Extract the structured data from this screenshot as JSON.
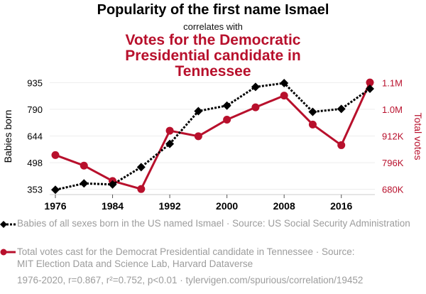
{
  "header": {
    "title": "Popularity of the first name Ismael",
    "subtitle": "correlates with",
    "title2": "Votes for the Democratic Presidential candidate in Tennessee"
  },
  "colors": {
    "series1": "#000000",
    "series2": "#b8102c",
    "grid": "#eeeeee",
    "axis": "#cccccc",
    "muted": "#9c9c9c"
  },
  "legend": {
    "series1": "Babies of all sexes born in the US named Ismael · Source: US Social Security Administration",
    "series2": "Total votes cast for the Democrat Presidential candidate in Tennessee · Source: MIT Election Data and Science Lab, Harvard Dataverse",
    "footer": "1976-2020, r=0.867, r²=0.752, p<0.01 · tylervigen.com/spurious/correlation/19452"
  },
  "chart_data": {
    "type": "line",
    "title": "Popularity of the first name Ismael correlates with Votes for the Democratic Presidential candidate in Tennessee",
    "x": [
      1976,
      1980,
      1984,
      1988,
      1992,
      1996,
      2000,
      2004,
      2008,
      2012,
      2016,
      2020
    ],
    "xlabel": "",
    "xticks": [
      1976,
      1984,
      1992,
      2000,
      2008,
      2016
    ],
    "xlim": [
      1975,
      2021
    ],
    "ylabel_left": "Babies born",
    "ylabel_right": "Total votes",
    "yticks_left": [
      353,
      498,
      644,
      790,
      935
    ],
    "yticks_left_labels": [
      "353",
      "498",
      "644",
      "790",
      "935"
    ],
    "ylim_left": [
      353,
      935
    ],
    "yticks_right": [
      680000,
      796000,
      912000,
      1028000,
      1144000
    ],
    "yticks_right_labels": [
      "680K",
      "796K",
      "912K",
      "1.0M",
      "1.1M"
    ],
    "ylim_right": [
      680000,
      1144000
    ],
    "grid": true,
    "legend_position": "bottom",
    "series": [
      {
        "name": "Babies of all sexes born in the US named Ismael",
        "axis": "left",
        "marker": "diamond",
        "style": "dotted",
        "values": [
          350,
          385,
          379,
          474,
          601,
          780,
          810,
          912,
          933,
          776,
          792,
          902
        ]
      },
      {
        "name": "Total votes cast for the Democrat Presidential candidate in Tennessee",
        "axis": "right",
        "marker": "circle",
        "style": "solid",
        "values": [
          829000,
          783000,
          716000,
          681000,
          935000,
          911000,
          983000,
          1037000,
          1088000,
          962000,
          872000,
          1145000
        ]
      }
    ]
  }
}
